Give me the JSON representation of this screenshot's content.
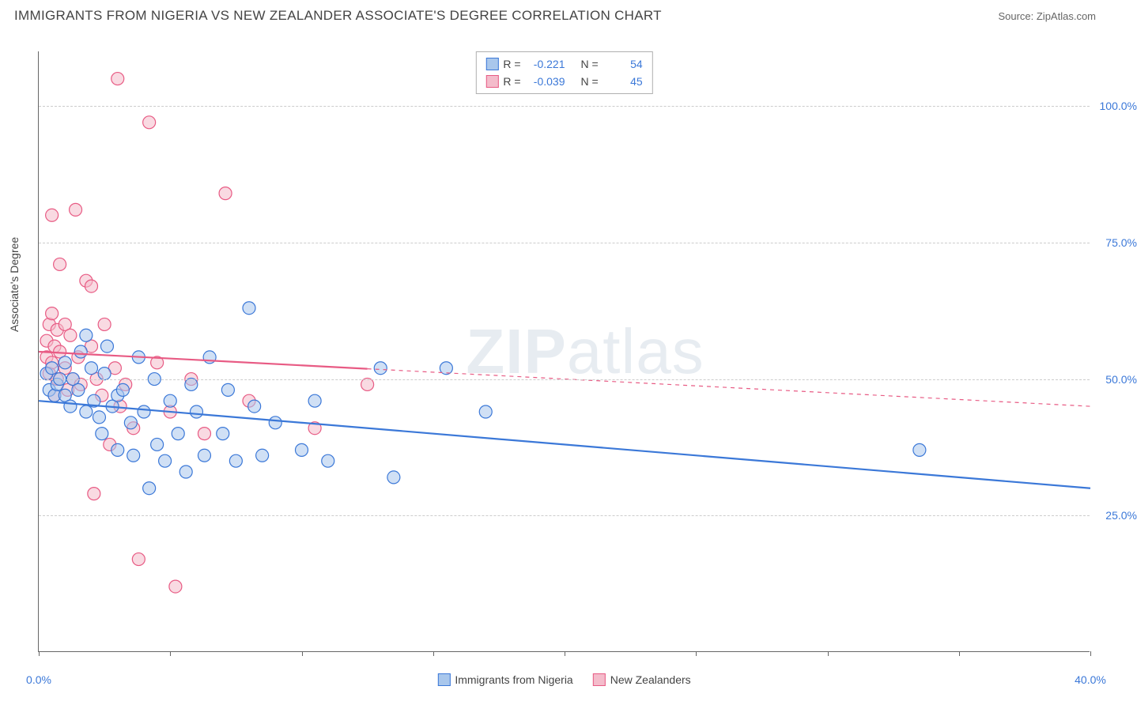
{
  "title": "IMMIGRANTS FROM NIGERIA VS NEW ZEALANDER ASSOCIATE'S DEGREE CORRELATION CHART",
  "source": "Source: ZipAtlas.com",
  "ylabel": "Associate's Degree",
  "watermark_bold": "ZIP",
  "watermark_normal": "atlas",
  "chart": {
    "type": "scatter-with-regression",
    "background_color": "#ffffff",
    "grid_color": "#cccccc",
    "axis_color": "#666666",
    "text_color": "#444444",
    "value_color": "#3b78d8",
    "xlim": [
      0,
      40
    ],
    "ylim": [
      0,
      110
    ],
    "yticks": [
      25,
      50,
      75,
      100
    ],
    "ytick_labels": [
      "25.0%",
      "50.0%",
      "75.0%",
      "100.0%"
    ],
    "xticks_minor": [
      0,
      5,
      10,
      15,
      20,
      25,
      30,
      35,
      40
    ],
    "xtick_labels": {
      "0": "0.0%",
      "40": "40.0%"
    },
    "marker_radius": 8,
    "marker_stroke_width": 1.2,
    "line_width_solid": 2.2,
    "line_width_dash": 1.2,
    "series": [
      {
        "name": "Immigrants from Nigeria",
        "fill_color": "#a9c7ec",
        "stroke_color": "#3b78d8",
        "fill_opacity": 0.55,
        "R": "-0.221",
        "N": "54",
        "regression": {
          "x1": 0,
          "y1": 46,
          "x2": 40,
          "y2": 30,
          "solid_until_x": 40
        },
        "points": [
          [
            0.3,
            51
          ],
          [
            0.4,
            48
          ],
          [
            0.5,
            52
          ],
          [
            0.6,
            47
          ],
          [
            0.7,
            49
          ],
          [
            0.8,
            50
          ],
          [
            1.0,
            53
          ],
          [
            1.0,
            47
          ],
          [
            1.2,
            45
          ],
          [
            1.3,
            50
          ],
          [
            1.5,
            48
          ],
          [
            1.6,
            55
          ],
          [
            1.8,
            44
          ],
          [
            1.8,
            58
          ],
          [
            2.0,
            52
          ],
          [
            2.1,
            46
          ],
          [
            2.3,
            43
          ],
          [
            2.4,
            40
          ],
          [
            2.5,
            51
          ],
          [
            2.6,
            56
          ],
          [
            2.8,
            45
          ],
          [
            3.0,
            47
          ],
          [
            3.0,
            37
          ],
          [
            3.2,
            48
          ],
          [
            3.5,
            42
          ],
          [
            3.6,
            36
          ],
          [
            3.8,
            54
          ],
          [
            4.0,
            44
          ],
          [
            4.2,
            30
          ],
          [
            4.4,
            50
          ],
          [
            4.5,
            38
          ],
          [
            4.8,
            35
          ],
          [
            5.0,
            46
          ],
          [
            5.3,
            40
          ],
          [
            5.6,
            33
          ],
          [
            5.8,
            49
          ],
          [
            6.0,
            44
          ],
          [
            6.3,
            36
          ],
          [
            6.5,
            54
          ],
          [
            7.0,
            40
          ],
          [
            7.2,
            48
          ],
          [
            7.5,
            35
          ],
          [
            8.0,
            63
          ],
          [
            8.2,
            45
          ],
          [
            8.5,
            36
          ],
          [
            9.0,
            42
          ],
          [
            10.0,
            37
          ],
          [
            10.5,
            46
          ],
          [
            11.0,
            35
          ],
          [
            13.0,
            52
          ],
          [
            13.5,
            32
          ],
          [
            15.5,
            52
          ],
          [
            17.0,
            44
          ],
          [
            33.5,
            37
          ]
        ]
      },
      {
        "name": "New Zealanders",
        "fill_color": "#f4bccb",
        "stroke_color": "#e85b84",
        "fill_opacity": 0.55,
        "R": "-0.039",
        "N": "45",
        "regression": {
          "x1": 0,
          "y1": 55,
          "x2": 40,
          "y2": 45,
          "solid_until_x": 12.5
        },
        "points": [
          [
            0.3,
            54
          ],
          [
            0.3,
            57
          ],
          [
            0.4,
            51
          ],
          [
            0.4,
            60
          ],
          [
            0.5,
            62
          ],
          [
            0.5,
            53
          ],
          [
            0.5,
            80
          ],
          [
            0.6,
            56
          ],
          [
            0.6,
            47
          ],
          [
            0.7,
            59
          ],
          [
            0.7,
            50
          ],
          [
            0.8,
            55
          ],
          [
            0.8,
            71
          ],
          [
            1.0,
            52
          ],
          [
            1.0,
            60
          ],
          [
            1.1,
            48
          ],
          [
            1.2,
            58
          ],
          [
            1.3,
            50
          ],
          [
            1.4,
            81
          ],
          [
            1.5,
            54
          ],
          [
            1.6,
            49
          ],
          [
            1.8,
            68
          ],
          [
            2.0,
            56
          ],
          [
            2.0,
            67
          ],
          [
            2.1,
            29
          ],
          [
            2.2,
            50
          ],
          [
            2.4,
            47
          ],
          [
            2.5,
            60
          ],
          [
            2.7,
            38
          ],
          [
            2.9,
            52
          ],
          [
            3.0,
            105
          ],
          [
            3.1,
            45
          ],
          [
            3.3,
            49
          ],
          [
            3.6,
            41
          ],
          [
            3.8,
            17
          ],
          [
            4.2,
            97
          ],
          [
            4.5,
            53
          ],
          [
            5.0,
            44
          ],
          [
            5.2,
            12
          ],
          [
            5.8,
            50
          ],
          [
            6.3,
            40
          ],
          [
            7.1,
            84
          ],
          [
            8.0,
            46
          ],
          [
            10.5,
            41
          ],
          [
            12.5,
            49
          ]
        ]
      }
    ]
  },
  "legend": {
    "series1": "Immigrants from Nigeria",
    "series2": "New Zealanders"
  },
  "stats_labels": {
    "R": "R =",
    "N": "N ="
  }
}
